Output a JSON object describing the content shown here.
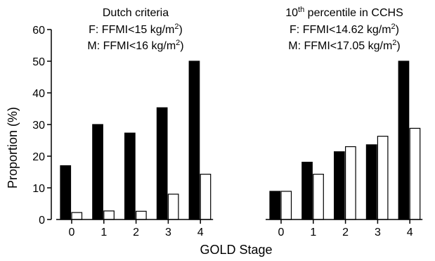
{
  "chart_data": {
    "type": "bar",
    "xlabel": "GOLD Stage",
    "ylabel": "Proportion (%)",
    "ylim": [
      0,
      60
    ],
    "yticks": [
      0,
      10,
      20,
      30,
      40,
      50,
      60
    ],
    "grid": false,
    "groups": [
      {
        "annotation": {
          "line1": "Dutch criteria",
          "line2": "F: FFMI<15 kg/m",
          "line2_sup": "2",
          "line2_end": ")",
          "line3": "M: FFMI<16 kg/m",
          "line3_sup": "2",
          "line3_end": ")"
        },
        "categories": [
          "0",
          "1",
          "2",
          "3",
          "4"
        ],
        "series": [
          {
            "fill": "#000000",
            "values": [
              17,
              30,
              27.3,
              35.3,
              50
            ]
          },
          {
            "fill": "#ffffff",
            "values": [
              2.2,
              2.7,
              2.6,
              8,
              14.3
            ]
          }
        ]
      },
      {
        "annotation": {
          "line1_pre": "10",
          "line1_sup": "th",
          "line1": " percentile in CCHS",
          "line2": "F: FFMI<14.62 kg/m",
          "line2_sup": "2",
          "line2_end": ")",
          "line3": "M: FFMI<17.05 kg/m",
          "line3_sup": "2",
          "line3_end": ")"
        },
        "categories": [
          "0",
          "1",
          "2",
          "3",
          "4"
        ],
        "series": [
          {
            "fill": "#000000",
            "values": [
              8.9,
              18.1,
              21.4,
              23.6,
              50
            ]
          },
          {
            "fill": "#ffffff",
            "values": [
              8.9,
              14.3,
              23,
              26.3,
              28.8
            ]
          }
        ]
      }
    ]
  }
}
